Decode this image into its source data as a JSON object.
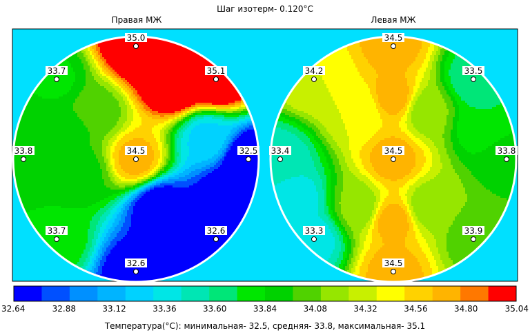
{
  "header": {
    "title": "Шаг изотерм- 0.120°C",
    "right_panel_title": "Правая МЖ",
    "left_panel_title": "Левая МЖ"
  },
  "colors": {
    "background": "#00e0ff",
    "scale": [
      "#0000ff",
      "#0050ff",
      "#0090ff",
      "#00b4ff",
      "#00d2ff",
      "#00e6e6",
      "#00e6b4",
      "#00e678",
      "#00e600",
      "#00d200",
      "#50d200",
      "#96e600",
      "#c8f000",
      "#ffff00",
      "#ffd200",
      "#ffb400",
      "#ff7800",
      "#ff0000"
    ]
  },
  "chart_data": [
    {
      "type": "heatmap",
      "title": "Правая МЖ",
      "points": [
        {
          "label": "35.0",
          "value": 35.0
        },
        {
          "label": "35.1",
          "value": 35.1
        },
        {
          "label": "33.7",
          "value": 33.7
        },
        {
          "label": "33.8",
          "value": 33.8
        },
        {
          "label": "34.5",
          "value": 34.5
        },
        {
          "label": "32.5",
          "value": 32.5
        },
        {
          "label": "33.7",
          "value": 33.7
        },
        {
          "label": "32.6",
          "value": 32.6
        },
        {
          "label": "32.6",
          "value": 32.6
        }
      ]
    },
    {
      "type": "heatmap",
      "title": "Левая МЖ",
      "points": [
        {
          "label": "34.5",
          "value": 34.5
        },
        {
          "label": "34.2",
          "value": 34.2
        },
        {
          "label": "33.5",
          "value": 33.5
        },
        {
          "label": "33.4",
          "value": 33.4
        },
        {
          "label": "34.5",
          "value": 34.5
        },
        {
          "label": "33.8",
          "value": 33.8
        },
        {
          "label": "33.3",
          "value": 33.3
        },
        {
          "label": "33.9",
          "value": 33.9
        },
        {
          "label": "34.5",
          "value": 34.5
        }
      ]
    }
  ],
  "scale_bar": {
    "min": 32.64,
    "max": 35.04,
    "step": 0.12,
    "tick_labels": [
      "32.64",
      "32.88",
      "33.12",
      "33.36",
      "33.60",
      "33.84",
      "34.08",
      "34.32",
      "34.56",
      "34.80",
      "35.04"
    ]
  },
  "footer": {
    "text": "Температура(°C): минимальная-   32.5,  средняя-   33.8,  максимальная-   35.1"
  }
}
